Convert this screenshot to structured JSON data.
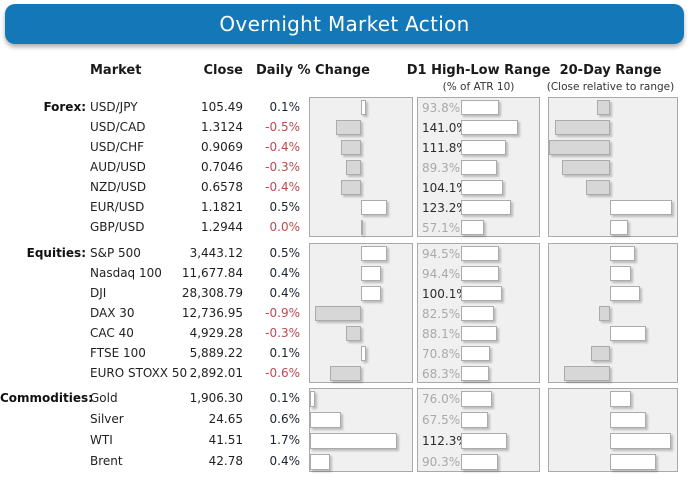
{
  "title": "Overnight Market Action",
  "columns": {
    "market": "Market",
    "close": "Close",
    "daily": "Daily % Change",
    "d1": "D1 High-Low Range",
    "d1_sub": "(% of ATR 10)",
    "range20": "20-Day Range",
    "range20_sub": "(Close relative to range)"
  },
  "colors": {
    "banner_blue": "#1478b8",
    "negative_red": "#bc4a52",
    "positive_dark": "#1c2331",
    "panel_bg": "#f0f0f0",
    "bar_gray": "#d7d7d7",
    "bar_white": "#ffffff",
    "dim_label_gray": "#a9a9a9"
  },
  "chart_data": {
    "type": "table",
    "d1_axis": [
      0,
      200
    ],
    "range20_axis": [
      -1,
      1
    ],
    "groups": [
      {
        "label": "Forex:",
        "daily_axis": [
          -1,
          1
        ],
        "rows": [
          {
            "market": "USD/JPY",
            "close": "105.49",
            "daily_label": "0.1%",
            "daily": 0.1,
            "neg": false,
            "d1_label": "93.8%",
            "d1": 93.8,
            "range20": -0.21
          },
          {
            "market": "USD/CAD",
            "close": "1.3124",
            "daily_label": "-0.5%",
            "daily": -0.5,
            "neg": true,
            "d1_label": "141.0%",
            "d1": 141.0,
            "range20": -0.9
          },
          {
            "market": "USD/CHF",
            "close": "0.9069",
            "daily_label": "-0.4%",
            "daily": -0.4,
            "neg": true,
            "d1_label": "111.8%",
            "d1": 111.8,
            "range20": -1.0
          },
          {
            "market": "AUD/USD",
            "close": "0.7046",
            "daily_label": "-0.3%",
            "daily": -0.3,
            "neg": true,
            "d1_label": "89.3%",
            "d1": 89.3,
            "range20": -0.79
          },
          {
            "market": "NZD/USD",
            "close": "0.6578",
            "daily_label": "-0.4%",
            "daily": -0.4,
            "neg": true,
            "d1_label": "104.1%",
            "d1": 104.1,
            "range20": -0.39
          },
          {
            "market": "EUR/USD",
            "close": "1.1821",
            "daily_label": "0.5%",
            "daily": 0.5,
            "neg": false,
            "d1_label": "123.2%",
            "d1": 123.2,
            "range20": 0.9
          },
          {
            "market": "GBP/USD",
            "close": "1.2944",
            "daily_label": "0.0%",
            "daily": 0.0,
            "neg": true,
            "d1_label": "57.1%",
            "d1": 57.1,
            "range20": 0.26
          }
        ]
      },
      {
        "label": "Equities:",
        "daily_axis": [
          -1,
          1
        ],
        "rows": [
          {
            "market": "S&P 500",
            "close": "3,443.12",
            "daily_label": "0.5%",
            "daily": 0.5,
            "neg": false,
            "d1_label": "94.5%",
            "d1": 94.5,
            "range20": 0.36
          },
          {
            "market": "Nasdaq 100",
            "close": "11,677.84",
            "daily_label": "0.4%",
            "daily": 0.4,
            "neg": false,
            "d1_label": "94.4%",
            "d1": 94.4,
            "range20": 0.3
          },
          {
            "market": "DJI",
            "close": "28,308.79",
            "daily_label": "0.4%",
            "daily": 0.4,
            "neg": false,
            "d1_label": "100.1%",
            "d1": 100.1,
            "range20": 0.43
          },
          {
            "market": "DAX 30",
            "close": "12,736.95",
            "daily_label": "-0.9%",
            "daily": -0.9,
            "neg": true,
            "d1_label": "82.5%",
            "d1": 82.5,
            "range20": -0.18
          },
          {
            "market": "CAC 40",
            "close": "4,929.28",
            "daily_label": "-0.3%",
            "daily": -0.3,
            "neg": true,
            "d1_label": "88.1%",
            "d1": 88.1,
            "range20": 0.52
          },
          {
            "market": "FTSE 100",
            "close": "5,889.22",
            "daily_label": "0.1%",
            "daily": 0.1,
            "neg": false,
            "d1_label": "70.8%",
            "d1": 70.8,
            "range20": -0.31
          },
          {
            "market": "EURO STOXX 50",
            "close": "2,892.01",
            "daily_label": "-0.6%",
            "daily": -0.6,
            "neg": true,
            "d1_label": "68.3%",
            "d1": 68.3,
            "range20": -0.75
          }
        ]
      },
      {
        "label": "Commodities:",
        "daily_axis": [
          0,
          2
        ],
        "rows": [
          {
            "market": "Gold",
            "close": "1,906.30",
            "daily_label": "0.1%",
            "daily": 0.1,
            "neg": false,
            "d1_label": "76.0%",
            "d1": 76.0,
            "range20": 0.3
          },
          {
            "market": "Silver",
            "close": "24.65",
            "daily_label": "0.6%",
            "daily": 0.6,
            "neg": false,
            "d1_label": "67.5%",
            "d1": 67.5,
            "range20": 0.52
          },
          {
            "market": "WTI",
            "close": "41.51",
            "daily_label": "1.7%",
            "daily": 1.7,
            "neg": false,
            "d1_label": "112.3%",
            "d1": 112.3,
            "range20": 0.88
          },
          {
            "market": "Brent",
            "close": "42.78",
            "daily_label": "0.4%",
            "daily": 0.4,
            "neg": false,
            "d1_label": "90.3%",
            "d1": 90.3,
            "range20": 0.67
          }
        ]
      }
    ]
  }
}
